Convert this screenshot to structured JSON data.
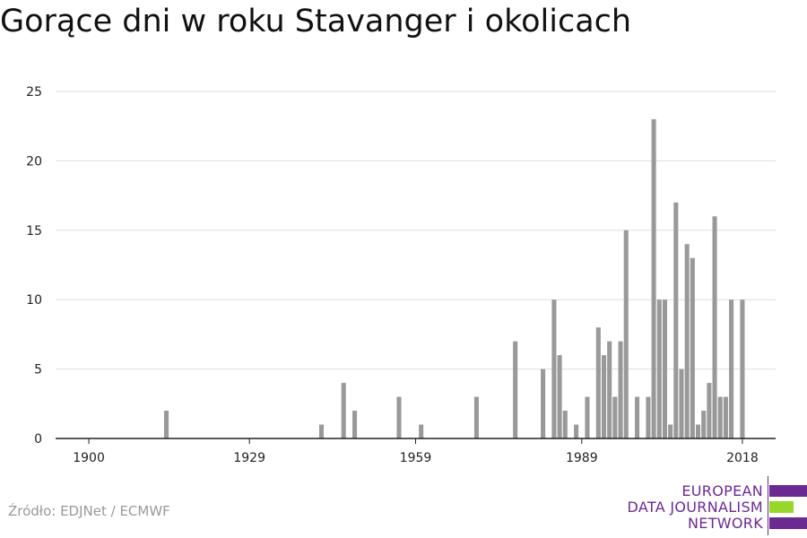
{
  "header": {
    "title": "Gorące dni w roku Stavanger i okolicach"
  },
  "footer": {
    "source": "Źródło: EDJNet / ECMWF"
  },
  "logo": {
    "line1": "EUROPEAN",
    "line2": "DATA JOURNALISM",
    "line3": "NETWORK",
    "purple": "#6b2a8f",
    "green": "#97d72a"
  },
  "chart_data": {
    "type": "bar",
    "title": "Gorące dni w roku Stavanger i okolicach",
    "xlabel": "",
    "ylabel": "",
    "xlim": [
      1894,
      2024
    ],
    "ylim": [
      0,
      25
    ],
    "yticks": [
      0,
      5,
      10,
      15,
      20,
      25
    ],
    "xticks": [
      1900,
      1929,
      1959,
      1989,
      2018
    ],
    "grid": true,
    "bar_color": "#999999",
    "x": [
      1914,
      1942,
      1946,
      1948,
      1956,
      1960,
      1970,
      1977,
      1982,
      1984,
      1985,
      1986,
      1988,
      1990,
      1992,
      1993,
      1994,
      1995,
      1996,
      1997,
      1999,
      2001,
      2002,
      2003,
      2004,
      2005,
      2006,
      2007,
      2008,
      2009,
      2010,
      2011,
      2012,
      2013,
      2014,
      2015,
      2016,
      2018
    ],
    "values": [
      2,
      1,
      4,
      2,
      3,
      1,
      3,
      7,
      5,
      10,
      6,
      2,
      1,
      3,
      8,
      6,
      7,
      3,
      7,
      15,
      3,
      3,
      23,
      10,
      10,
      1,
      17,
      5,
      14,
      13,
      1,
      2,
      4,
      16,
      3,
      3,
      10,
      10
    ]
  }
}
